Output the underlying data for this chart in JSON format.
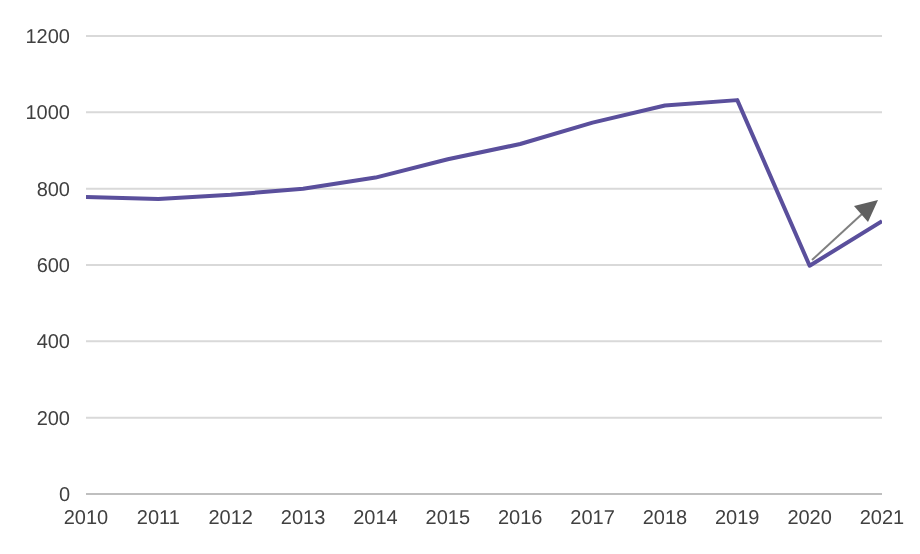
{
  "chart_data": {
    "type": "line",
    "categories": [
      "2010",
      "2011",
      "2012",
      "2013",
      "2014",
      "2015",
      "2016",
      "2017",
      "2018",
      "2019",
      "2020",
      "2021"
    ],
    "series": [
      {
        "color": "#5a4f9c",
        "values": [
          778,
          773,
          784,
          800,
          829,
          877,
          917,
          973,
          1018,
          1032,
          598,
          715
        ]
      }
    ],
    "ylim": [
      0,
      1200
    ],
    "yticks": [
      0,
      200,
      400,
      600,
      800,
      1000,
      1200
    ],
    "grid": "y",
    "legend": false,
    "marker": "none",
    "line_style": "solid"
  }
}
